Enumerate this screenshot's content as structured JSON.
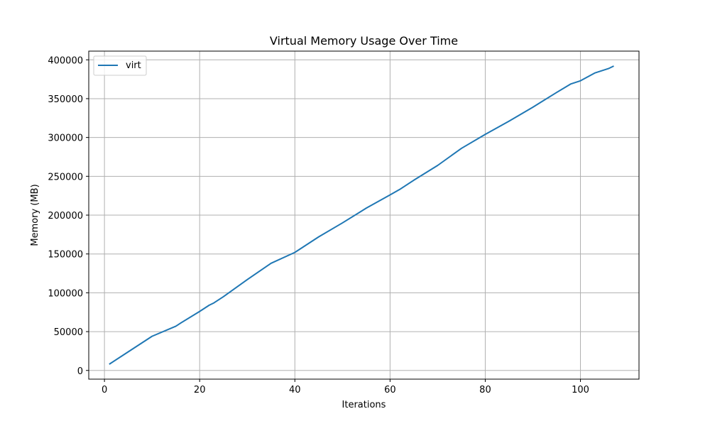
{
  "chart_data": {
    "type": "line",
    "title": "Virtual Memory Usage Over Time",
    "xlabel": "Iterations",
    "ylabel": "Memory (MB)",
    "xlim": [
      -3.3,
      112.3
    ],
    "ylim": [
      -11200,
      411200
    ],
    "xticks": [
      0,
      20,
      40,
      60,
      80,
      100
    ],
    "yticks": [
      0,
      50000,
      100000,
      150000,
      200000,
      250000,
      300000,
      350000,
      400000
    ],
    "grid": true,
    "legend_position": "top-left",
    "series": [
      {
        "name": "virt",
        "color": "#1f77b4",
        "x": [
          1,
          5,
          10,
          15,
          16,
          20,
          22,
          23,
          25,
          30,
          35,
          40,
          45,
          50,
          55,
          60,
          62,
          65,
          70,
          75,
          80,
          85,
          90,
          95,
          98,
          100,
          103,
          106,
          107
        ],
        "y": [
          8000,
          24000,
          44000,
          57000,
          61000,
          76000,
          84000,
          87000,
          95000,
          117000,
          138000,
          152000,
          172000,
          190000,
          209000,
          226000,
          233000,
          245000,
          264000,
          286000,
          304000,
          321000,
          339000,
          358000,
          369000,
          373000,
          383000,
          389000,
          392000
        ]
      }
    ]
  }
}
